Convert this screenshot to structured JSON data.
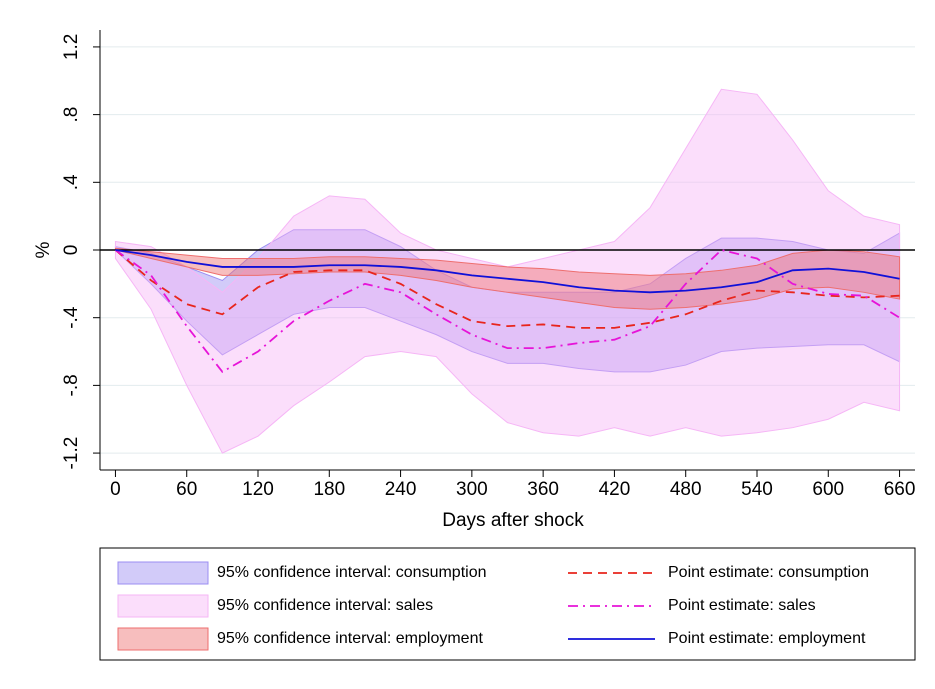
{
  "chart_data": {
    "type": "line",
    "x_label": "Days after shock",
    "y_label": "%",
    "x": [
      0,
      30,
      60,
      90,
      120,
      150,
      180,
      210,
      240,
      270,
      300,
      330,
      360,
      390,
      420,
      450,
      480,
      510,
      540,
      570,
      600,
      630,
      660
    ],
    "xlim": [
      -13,
      673
    ],
    "xticks": [
      0,
      60,
      120,
      180,
      240,
      300,
      360,
      420,
      480,
      540,
      600,
      660
    ],
    "ylim": [
      -1.3,
      1.3
    ],
    "yticks": [
      {
        "value": -1.2,
        "label": "-1.2"
      },
      {
        "value": -0.8,
        "label": "-.8"
      },
      {
        "value": -0.4,
        "label": "-.4"
      },
      0,
      {
        "value": 0.4,
        "label": ".4"
      },
      {
        "value": 0.8,
        "label": ".8"
      },
      {
        "value": 1.2,
        "label": "1.2"
      }
    ],
    "grid": true,
    "zero_line": true,
    "legend": "bottom",
    "series": [
      {
        "name": "95% confidence interval: consumption",
        "color": "#9b8cf2",
        "lower": [
          0,
          -0.2,
          -0.42,
          -0.62,
          -0.5,
          -0.38,
          -0.34,
          -0.34,
          -0.42,
          -0.5,
          -0.6,
          -0.67,
          -0.67,
          -0.7,
          -0.72,
          -0.72,
          -0.68,
          -0.6,
          -0.58,
          -0.57,
          -0.56,
          -0.56,
          -0.66
        ],
        "upper": [
          0.02,
          -0.02,
          -0.1,
          -0.18,
          0,
          0.12,
          0.12,
          0.12,
          0.02,
          -0.12,
          -0.22,
          -0.25,
          -0.25,
          -0.25,
          -0.25,
          -0.2,
          -0.05,
          0.07,
          0.07,
          0.05,
          0,
          -0.02,
          0.1
        ]
      },
      {
        "name": "95% confidence interval: sales",
        "color": "#f6b6f6",
        "lower": [
          -0.05,
          -0.35,
          -0.8,
          -1.2,
          -1.1,
          -0.92,
          -0.78,
          -0.63,
          -0.6,
          -0.63,
          -0.85,
          -1.02,
          -1.08,
          -1.1,
          -1.05,
          -1.1,
          -1.05,
          -1.1,
          -1.08,
          -1.05,
          -1,
          -0.9,
          -0.95
        ],
        "upper": [
          0.05,
          0.02,
          -0.1,
          -0.25,
          -0.05,
          0.2,
          0.32,
          0.3,
          0.1,
          0,
          -0.05,
          -0.1,
          -0.05,
          0,
          0.05,
          0.25,
          0.6,
          0.95,
          0.92,
          0.65,
          0.35,
          0.2,
          0.15
        ]
      },
      {
        "name": "95% confidence interval: employment",
        "color": "#ee6e6e",
        "lower": [
          0,
          -0.05,
          -0.1,
          -0.15,
          -0.15,
          -0.14,
          -0.13,
          -0.13,
          -0.15,
          -0.18,
          -0.22,
          -0.25,
          -0.28,
          -0.31,
          -0.34,
          -0.35,
          -0.34,
          -0.32,
          -0.29,
          -0.23,
          -0.22,
          -0.25,
          -0.29
        ],
        "upper": [
          0.01,
          -0.01,
          -0.03,
          -0.05,
          -0.05,
          -0.05,
          -0.04,
          -0.04,
          -0.05,
          -0.06,
          -0.08,
          -0.1,
          -0.11,
          -0.13,
          -0.14,
          -0.15,
          -0.14,
          -0.12,
          -0.09,
          -0.02,
          0,
          -0.01,
          -0.04
        ]
      },
      {
        "name": "Point estimate: consumption",
        "color": "#e8251c",
        "dash": "dash",
        "values": [
          0,
          -0.18,
          -0.32,
          -0.38,
          -0.22,
          -0.13,
          -0.12,
          -0.12,
          -0.2,
          -0.32,
          -0.42,
          -0.45,
          -0.44,
          -0.46,
          -0.46,
          -0.43,
          -0.38,
          -0.3,
          -0.24,
          -0.25,
          -0.27,
          -0.28,
          -0.27
        ]
      },
      {
        "name": "Point estimate: sales",
        "color": "#e614d8",
        "dash": "dashdot",
        "values": [
          0,
          -0.15,
          -0.45,
          -0.72,
          -0.6,
          -0.42,
          -0.3,
          -0.2,
          -0.25,
          -0.38,
          -0.5,
          -0.58,
          -0.58,
          -0.55,
          -0.53,
          -0.45,
          -0.2,
          0,
          -0.05,
          -0.2,
          -0.26,
          -0.27,
          -0.4
        ]
      },
      {
        "name": "Point estimate: employment",
        "color": "#1010d8",
        "dash": "solid",
        "values": [
          0,
          -0.03,
          -0.07,
          -0.1,
          -0.1,
          -0.1,
          -0.09,
          -0.09,
          -0.1,
          -0.12,
          -0.15,
          -0.17,
          -0.19,
          -0.22,
          -0.24,
          -0.25,
          -0.24,
          -0.22,
          -0.19,
          -0.12,
          -0.11,
          -0.13,
          -0.17
        ]
      }
    ]
  }
}
